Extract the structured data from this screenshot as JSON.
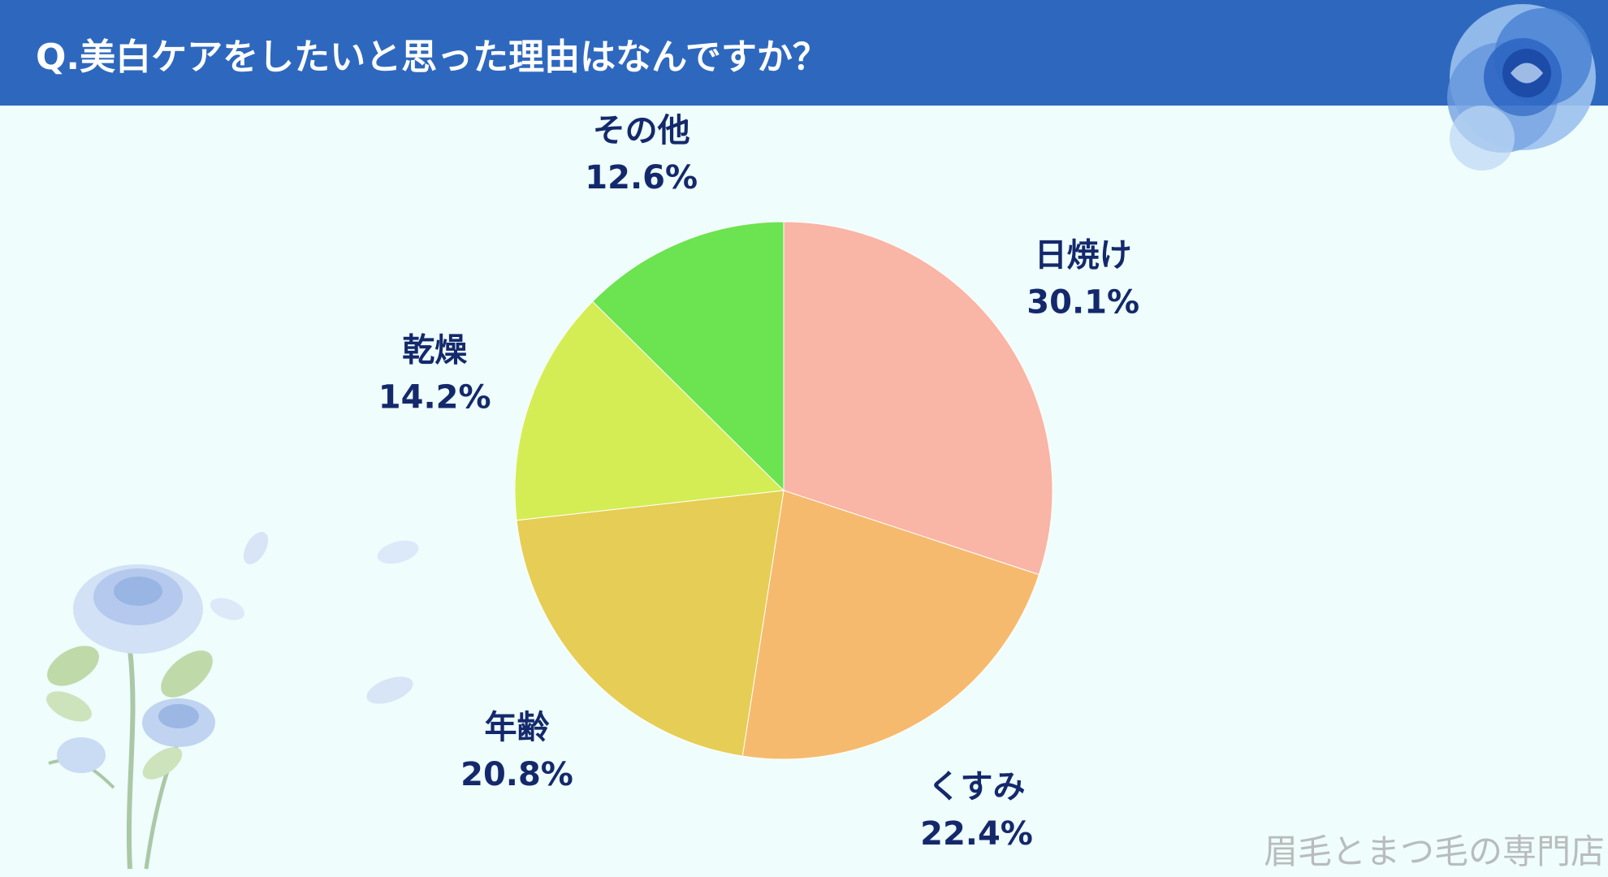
{
  "header": {
    "title": "Q.美白ケアをしたいと思った理由はなんですか？"
  },
  "chart_data": {
    "type": "pie",
    "start_angle": "12 o'clock",
    "direction": "clockwise",
    "slices": [
      {
        "label": "日焼け",
        "value": 30.1,
        "value_label": "30.1%",
        "color": "#f9b5a5"
      },
      {
        "label": "くすみ",
        "value": 22.4,
        "value_label": "22.4%",
        "color": "#f6ba6e"
      },
      {
        "label": "年齢",
        "value": 20.8,
        "value_label": "20.8%",
        "color": "#e6cd55"
      },
      {
        "label": "乾燥",
        "value": 14.2,
        "value_label": "14.2%",
        "color": "#d4ed55"
      },
      {
        "label": "その他",
        "value": 12.6,
        "value_label": "12.6%",
        "color": "#6ce351"
      }
    ]
  },
  "colors": {
    "header": "#2e68be",
    "background": "#effdfd",
    "label_text": "#14296b"
  },
  "watermark": "眉毛とまつ毛の専門店"
}
